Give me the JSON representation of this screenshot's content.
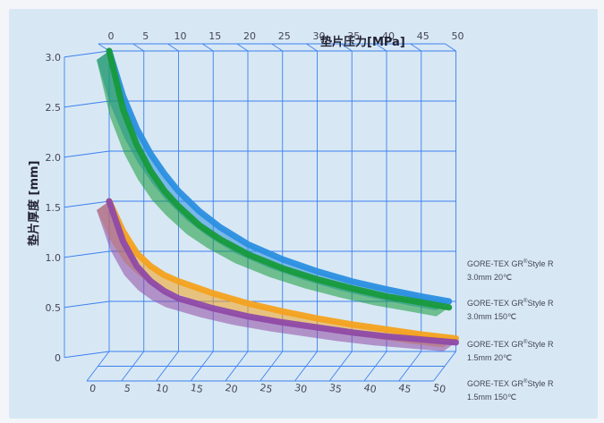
{
  "chart_data": {
    "type": "line",
    "xlabel": "垫片压力[MPa]",
    "ylabel": "垫片厚度 [mm]",
    "xlim": [
      0,
      50
    ],
    "ylim": [
      0,
      3.0
    ],
    "xticks": [
      "0",
      "5",
      "10",
      "15",
      "20",
      "25",
      "30",
      "35",
      "40",
      "45",
      "50"
    ],
    "yticks": [
      "0",
      "0.5",
      "1.0",
      "1.5",
      "2.0",
      "2.5",
      "3.0"
    ],
    "grid": true,
    "legend_position": "right",
    "series": [
      {
        "name_line1": "GORE-TEX GR",
        "name_sup": "®",
        "name_line1b": "Style R",
        "name_line2": "3.0mm 20℃",
        "color": "#2b8fe0",
        "x": [
          0,
          2,
          4,
          6,
          8,
          10,
          13,
          16,
          20,
          25,
          30,
          35,
          40,
          45,
          49
        ],
        "y": [
          3.0,
          2.55,
          2.22,
          1.97,
          1.77,
          1.6,
          1.4,
          1.24,
          1.07,
          0.92,
          0.8,
          0.7,
          0.62,
          0.55,
          0.5
        ]
      },
      {
        "name_line1": "GORE-TEX GR",
        "name_sup": "®",
        "name_line1b": "Style R",
        "name_line2": "3.0mm 150℃",
        "color": "#179a3c",
        "x": [
          0,
          2,
          4,
          6,
          8,
          10,
          13,
          16,
          20,
          25,
          30,
          35,
          40,
          45,
          49
        ],
        "y": [
          3.0,
          2.42,
          2.06,
          1.8,
          1.6,
          1.45,
          1.26,
          1.12,
          0.97,
          0.83,
          0.72,
          0.63,
          0.55,
          0.49,
          0.44
        ]
      },
      {
        "name_line1": "GORE-TEX GR",
        "name_sup": "®",
        "name_line1b": "Style R",
        "name_line2": "1.5mm 20℃",
        "color": "#f4a21f",
        "x": [
          0,
          2,
          4,
          6,
          8,
          10,
          15,
          20,
          25,
          30,
          35,
          40,
          45,
          50
        ],
        "y": [
          1.5,
          1.2,
          0.98,
          0.85,
          0.76,
          0.7,
          0.58,
          0.48,
          0.4,
          0.33,
          0.27,
          0.22,
          0.17,
          0.13
        ]
      },
      {
        "name_line1": "GORE-TEX GR",
        "name_sup": "®",
        "name_line1b": "Style R",
        "name_line2": "1.5mm 150℃",
        "color": "#8f4aa6",
        "x": [
          0,
          2,
          4,
          6,
          8,
          10,
          15,
          20,
          25,
          30,
          35,
          40,
          45,
          50
        ],
        "y": [
          1.5,
          1.1,
          0.85,
          0.7,
          0.6,
          0.53,
          0.43,
          0.35,
          0.29,
          0.24,
          0.19,
          0.15,
          0.12,
          0.09
        ]
      }
    ]
  }
}
